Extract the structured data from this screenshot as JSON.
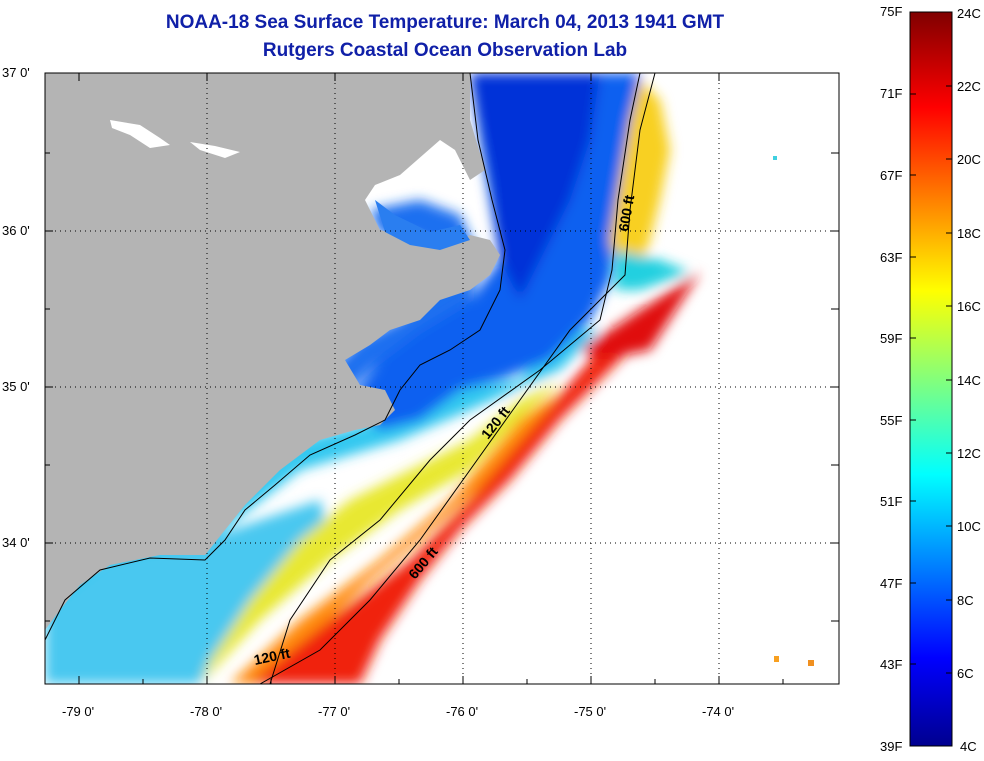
{
  "title": "NOAA-18 Sea Surface Temperature:  March 04, 2013 1941 GMT",
  "subtitle": "Rutgers Coastal Ocean Observation Lab",
  "map": {
    "lat_labels": [
      "37 0'",
      "36 0'",
      "35 0'",
      "34 0'"
    ],
    "lon_labels": [
      "-79 0'",
      "-78 0'",
      "-77 0'",
      "-76 0'",
      "-75 0'",
      "-74 0'"
    ],
    "lat_range": [
      33.1,
      37.0
    ],
    "lon_range": [
      -79.3,
      -73.0
    ],
    "isobaths": [
      {
        "label": "600 ft"
      },
      {
        "label": "120 ft"
      },
      {
        "label": "600 ft"
      },
      {
        "label": "120 ft"
      }
    ],
    "land_color": "#b4b4b4",
    "grid": "dotted"
  },
  "colorbar": {
    "fahrenheit_labels": [
      "75F",
      "71F",
      "67F",
      "63F",
      "59F",
      "55F",
      "51F",
      "47F",
      "43F",
      "39F"
    ],
    "celsius_labels": [
      "24C",
      "22C",
      "20C",
      "18C",
      "16C",
      "14C",
      "12C",
      "10C",
      "8C",
      "6C",
      "4C"
    ],
    "range_c": [
      4,
      24
    ],
    "colormap": "jet"
  }
}
